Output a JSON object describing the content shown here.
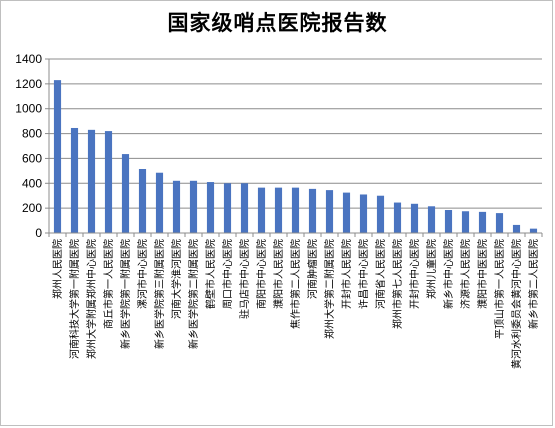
{
  "chart_data": {
    "type": "bar",
    "title": "国家级哨点医院报告数",
    "xlabel": "",
    "ylabel": "",
    "ylim": [
      0,
      1400
    ],
    "yticks": [
      0,
      200,
      400,
      600,
      800,
      1000,
      1200,
      1400
    ],
    "grid": true,
    "legend": "none",
    "bar_color": "#4a74c0",
    "categories": [
      "郑州人民医院",
      "河南科技大学第一附属医院",
      "郑州大学附属郑州中心医院",
      "商丘市第一人民医院",
      "新乡医学院第一附属医院",
      "漯河市中心医院",
      "新乡医学院第三附属医院",
      "河南大学淮河医院",
      "新乡医学院第二附属医院",
      "鹤壁市人民医院",
      "周口市中心医院",
      "驻马店市中心医院",
      "南阳市中心医院",
      "濮阳市人民医院",
      "焦作市第二人民医院",
      "河南肿瘤医院",
      "郑州大学第二附属医院",
      "开封市人民医院",
      "许昌市中心医院",
      "河南省人民医院",
      "郑州市第七人民医院",
      "开封市中心医院",
      "郑州儿童医院",
      "新乡市中心医院",
      "济源市人民医院",
      "濮阳市中医医院",
      "平顶山市第一人民医院",
      "黄河水利委员会黄河中心医院",
      "新乡市第二人民医院"
    ],
    "values": [
      1230,
      845,
      830,
      820,
      635,
      515,
      485,
      420,
      420,
      410,
      400,
      400,
      365,
      365,
      365,
      355,
      345,
      325,
      310,
      300,
      245,
      235,
      215,
      185,
      175,
      170,
      160,
      65,
      35
    ]
  }
}
